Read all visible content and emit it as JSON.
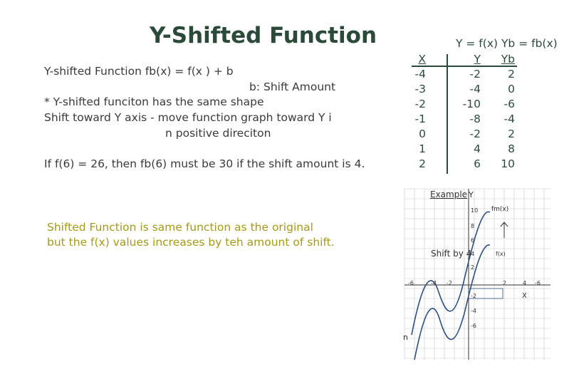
{
  "title": "Y-Shifted Function",
  "definition": {
    "line1": "Y-shifted Function  fb(x) = f(x ) + b",
    "line2": "b: Shift Amount",
    "line3": "* Y-shifted funciton has the same shape",
    "line4": "Shift toward Y axis - move function graph toward Y i",
    "line5": "n positive direciton",
    "example": "If f(6) = 26, then fb(6) must be 30 if the shift amount is 4."
  },
  "summary": {
    "line1": "Shifted Function is same function as the original",
    "line2": "but the f(x) values increases by teh amount of shift."
  },
  "table": {
    "header": "Y = f(x)  Yb = fb(x)",
    "col_x": "X",
    "col_y": "Y",
    "col_yb": "Yb",
    "x": [
      "-4",
      "-3",
      "-2",
      "-1",
      "0",
      "1",
      "2"
    ],
    "y": [
      "-2",
      "-4",
      "-10",
      "-8",
      "-2",
      "4",
      "6"
    ],
    "yb": [
      "2",
      "0",
      "-6",
      "-4",
      "2",
      "8",
      "10"
    ]
  },
  "graph": {
    "example_label": "Example",
    "y_axis_label": "Y",
    "x_axis_label": "X",
    "shift_label": "Shift by 4",
    "shifted_fn_label": "fm(x)",
    "orig_fn_label": "f(x)",
    "y_ticks": [
      "10",
      "8",
      "6",
      "4",
      "2",
      "-2",
      "-4",
      "-6"
    ],
    "x_ticks_neg": [
      "-6",
      "-4",
      "-2"
    ],
    "x_ticks_pos": [
      "2",
      "4",
      "-6"
    ],
    "left_cut": "n",
    "colors": {
      "curve": "#2f4f7f",
      "grid": "#c8c8c8",
      "axis": "#333333"
    }
  }
}
